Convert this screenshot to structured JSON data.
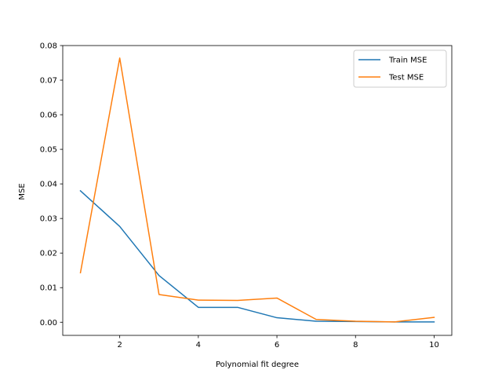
{
  "chart_data": {
    "type": "line",
    "title": "",
    "xlabel": "Polynomial fit degree",
    "ylabel": "MSE",
    "xlim": [
      0.55,
      10.45
    ],
    "ylim": [
      -0.0038,
      0.08
    ],
    "xticks": [
      2,
      4,
      6,
      8,
      10
    ],
    "xtick_labels": [
      "2",
      "4",
      "6",
      "8",
      "10"
    ],
    "yticks": [
      0.0,
      0.01,
      0.02,
      0.03,
      0.04,
      0.05,
      0.06,
      0.07,
      0.08
    ],
    "ytick_labels": [
      "0.00",
      "0.01",
      "0.02",
      "0.03",
      "0.04",
      "0.05",
      "0.06",
      "0.07",
      "0.08"
    ],
    "grid": false,
    "legend": "top-right",
    "x": [
      1,
      2,
      3,
      4,
      5,
      6,
      7,
      8,
      9,
      10
    ],
    "series": [
      {
        "name": "Train MSE",
        "color": "#1f77b4",
        "values": [
          0.038,
          0.0277,
          0.0135,
          0.0043,
          0.0043,
          0.0013,
          0.0003,
          0.0002,
          0.0001,
          0.0001
        ]
      },
      {
        "name": "Test MSE",
        "color": "#ff7f0e",
        "values": [
          0.0143,
          0.0764,
          0.008,
          0.0064,
          0.0063,
          0.007,
          0.0008,
          0.0003,
          0.0001,
          0.0014
        ]
      }
    ]
  }
}
